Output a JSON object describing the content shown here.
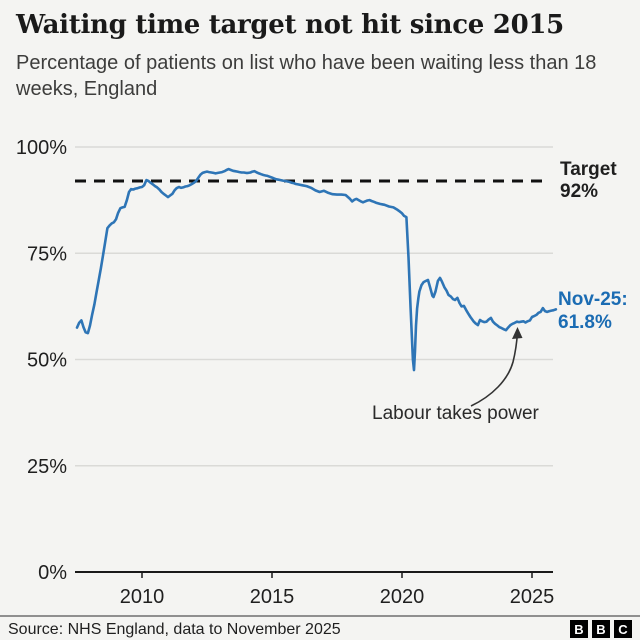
{
  "header": {
    "title": "Waiting time target not hit since 2015",
    "subtitle": "Percentage of patients on list who have been waiting less than 18 weeks, England"
  },
  "annotations": {
    "target_line1": "Target",
    "target_line2": "92%",
    "latest_line1": "Nov-25:",
    "latest_line2": "61.8%",
    "event_label": "Labour takes power"
  },
  "footer": {
    "source": "Source: NHS England, data to November 2025",
    "logo_letters": [
      "B",
      "B",
      "C"
    ]
  },
  "colors": {
    "background": "#f4f4f2",
    "series_line": "#2e75b6",
    "latest_text": "#1b6cb3",
    "target_dash": "#111111",
    "gridline": "#dadad7",
    "axis": "#1a1a1a",
    "text": "#1f1f1f"
  },
  "chart_data": {
    "type": "line",
    "title": "Waiting time target not hit since 2015",
    "ylabel": "Percentage of patients on list who have been waiting less than 18 weeks",
    "region": "England",
    "grid": "horizontal",
    "legend_position": "none",
    "xlim": [
      2007.3,
      2026.1
    ],
    "ylim": [
      0,
      100
    ],
    "x_ticks": [
      2010,
      2015,
      2020,
      2025
    ],
    "x_tick_labels": [
      "2010",
      "2015",
      "2020",
      "2025"
    ],
    "y_ticks": [
      0,
      25,
      50,
      75,
      100
    ],
    "y_tick_labels": [
      "0%",
      "25%",
      "50%",
      "75%",
      "100%"
    ],
    "target_value": 92,
    "latest_point": {
      "label": "Nov-25",
      "value": 61.8,
      "x": 2025.92
    },
    "event_point": {
      "label": "Labour takes power",
      "x": 2024.5,
      "value": 58.8
    },
    "series": [
      {
        "name": "% waiting less than 18 weeks",
        "points": [
          [
            2007.5,
            57.5
          ],
          [
            2007.58,
            58.6
          ],
          [
            2007.67,
            59.2
          ],
          [
            2007.75,
            57.6
          ],
          [
            2007.83,
            56.4
          ],
          [
            2007.92,
            56.2
          ],
          [
            2008.0,
            58.0
          ],
          [
            2008.08,
            60.5
          ],
          [
            2008.17,
            63.0
          ],
          [
            2008.25,
            65.8
          ],
          [
            2008.33,
            68.5
          ],
          [
            2008.42,
            71.5
          ],
          [
            2008.5,
            74.5
          ],
          [
            2008.58,
            77.5
          ],
          [
            2008.67,
            80.9
          ],
          [
            2008.75,
            81.5
          ],
          [
            2008.83,
            82.0
          ],
          [
            2008.92,
            82.3
          ],
          [
            2009.0,
            83.0
          ],
          [
            2009.08,
            84.5
          ],
          [
            2009.17,
            85.6
          ],
          [
            2009.25,
            85.8
          ],
          [
            2009.33,
            85.9
          ],
          [
            2009.42,
            87.5
          ],
          [
            2009.5,
            89.4
          ],
          [
            2009.58,
            90.1
          ],
          [
            2009.67,
            90.0
          ],
          [
            2009.75,
            90.2
          ],
          [
            2009.83,
            90.3
          ],
          [
            2009.92,
            90.5
          ],
          [
            2010.0,
            90.6
          ],
          [
            2010.08,
            91.0
          ],
          [
            2010.17,
            92.2
          ],
          [
            2010.25,
            92.0
          ],
          [
            2010.33,
            91.6
          ],
          [
            2010.42,
            91.2
          ],
          [
            2010.5,
            90.8
          ],
          [
            2010.58,
            90.5
          ],
          [
            2010.67,
            90.0
          ],
          [
            2010.75,
            89.4
          ],
          [
            2010.83,
            89.0
          ],
          [
            2010.92,
            88.6
          ],
          [
            2011.0,
            88.2
          ],
          [
            2011.08,
            88.6
          ],
          [
            2011.17,
            89.0
          ],
          [
            2011.25,
            89.8
          ],
          [
            2011.33,
            90.3
          ],
          [
            2011.42,
            90.6
          ],
          [
            2011.5,
            90.4
          ],
          [
            2011.58,
            90.5
          ],
          [
            2011.67,
            90.7
          ],
          [
            2011.75,
            90.8
          ],
          [
            2011.83,
            91.0
          ],
          [
            2011.92,
            91.3
          ],
          [
            2012.0,
            91.6
          ],
          [
            2012.08,
            92.0
          ],
          [
            2012.17,
            92.8
          ],
          [
            2012.25,
            93.5
          ],
          [
            2012.33,
            93.9
          ],
          [
            2012.42,
            94.1
          ],
          [
            2012.5,
            94.2
          ],
          [
            2012.58,
            94.1
          ],
          [
            2012.67,
            94.0
          ],
          [
            2012.75,
            93.9
          ],
          [
            2012.83,
            93.8
          ],
          [
            2012.92,
            93.9
          ],
          [
            2013.0,
            94.0
          ],
          [
            2013.08,
            94.1
          ],
          [
            2013.17,
            94.3
          ],
          [
            2013.25,
            94.6
          ],
          [
            2013.33,
            94.8
          ],
          [
            2013.42,
            94.6
          ],
          [
            2013.5,
            94.4
          ],
          [
            2013.58,
            94.3
          ],
          [
            2013.67,
            94.2
          ],
          [
            2013.75,
            94.1
          ],
          [
            2013.83,
            94.0
          ],
          [
            2013.92,
            94.0
          ],
          [
            2014.0,
            93.9
          ],
          [
            2014.08,
            93.9
          ],
          [
            2014.17,
            94.0
          ],
          [
            2014.25,
            94.2
          ],
          [
            2014.33,
            94.3
          ],
          [
            2014.42,
            94.0
          ],
          [
            2014.5,
            93.8
          ],
          [
            2014.58,
            93.6
          ],
          [
            2014.67,
            93.4
          ],
          [
            2014.75,
            93.3
          ],
          [
            2014.83,
            93.2
          ],
          [
            2014.92,
            93.0
          ],
          [
            2015.0,
            92.8
          ],
          [
            2015.08,
            92.6
          ],
          [
            2015.17,
            92.4
          ],
          [
            2015.25,
            92.3
          ],
          [
            2015.33,
            92.2
          ],
          [
            2015.42,
            92.1
          ],
          [
            2015.5,
            92.0
          ],
          [
            2015.58,
            91.9
          ],
          [
            2015.67,
            91.8
          ],
          [
            2015.75,
            91.6
          ],
          [
            2015.83,
            91.5
          ],
          [
            2015.92,
            91.3
          ],
          [
            2016.0,
            91.2
          ],
          [
            2016.17,
            91.0
          ],
          [
            2016.33,
            90.8
          ],
          [
            2016.5,
            90.4
          ],
          [
            2016.67,
            89.8
          ],
          [
            2016.83,
            89.4
          ],
          [
            2017.0,
            89.7
          ],
          [
            2017.17,
            89.2
          ],
          [
            2017.33,
            88.9
          ],
          [
            2017.5,
            88.8
          ],
          [
            2017.67,
            88.8
          ],
          [
            2017.83,
            88.7
          ],
          [
            2018.0,
            87.8
          ],
          [
            2018.08,
            87.2
          ],
          [
            2018.17,
            87.6
          ],
          [
            2018.25,
            87.8
          ],
          [
            2018.33,
            87.5
          ],
          [
            2018.42,
            87.2
          ],
          [
            2018.5,
            87.0
          ],
          [
            2018.58,
            87.2
          ],
          [
            2018.67,
            87.4
          ],
          [
            2018.75,
            87.5
          ],
          [
            2018.83,
            87.3
          ],
          [
            2018.92,
            87.1
          ],
          [
            2019.0,
            86.9
          ],
          [
            2019.17,
            86.6
          ],
          [
            2019.33,
            86.4
          ],
          [
            2019.5,
            86.0
          ],
          [
            2019.67,
            85.8
          ],
          [
            2019.83,
            85.2
          ],
          [
            2019.92,
            84.8
          ],
          [
            2020.0,
            84.4
          ],
          [
            2020.08,
            83.8
          ],
          [
            2020.17,
            83.5
          ],
          [
            2020.25,
            74.0
          ],
          [
            2020.33,
            62.0
          ],
          [
            2020.42,
            50.0
          ],
          [
            2020.46,
            47.5
          ],
          [
            2020.5,
            52.0
          ],
          [
            2020.54,
            58.0
          ],
          [
            2020.58,
            62.0
          ],
          [
            2020.63,
            64.5
          ],
          [
            2020.67,
            66.0
          ],
          [
            2020.75,
            67.5
          ],
          [
            2020.83,
            68.2
          ],
          [
            2020.92,
            68.5
          ],
          [
            2021.0,
            68.7
          ],
          [
            2021.08,
            67.0
          ],
          [
            2021.17,
            65.0
          ],
          [
            2021.21,
            64.7
          ],
          [
            2021.29,
            66.0
          ],
          [
            2021.38,
            68.5
          ],
          [
            2021.46,
            69.2
          ],
          [
            2021.54,
            68.3
          ],
          [
            2021.63,
            67.0
          ],
          [
            2021.71,
            66.2
          ],
          [
            2021.79,
            65.2
          ],
          [
            2021.88,
            64.8
          ],
          [
            2021.96,
            64.2
          ],
          [
            2022.04,
            64.0
          ],
          [
            2022.13,
            64.5
          ],
          [
            2022.21,
            63.3
          ],
          [
            2022.29,
            62.5
          ],
          [
            2022.38,
            62.6
          ],
          [
            2022.46,
            61.7
          ],
          [
            2022.54,
            60.9
          ],
          [
            2022.63,
            60.0
          ],
          [
            2022.75,
            59.0
          ],
          [
            2022.83,
            58.5
          ],
          [
            2022.92,
            58.1
          ],
          [
            2023.0,
            59.3
          ],
          [
            2023.08,
            59.0
          ],
          [
            2023.17,
            58.8
          ],
          [
            2023.25,
            58.9
          ],
          [
            2023.33,
            59.4
          ],
          [
            2023.42,
            59.8
          ],
          [
            2023.5,
            58.9
          ],
          [
            2023.58,
            58.4
          ],
          [
            2023.67,
            58.0
          ],
          [
            2023.75,
            57.6
          ],
          [
            2023.83,
            57.4
          ],
          [
            2023.92,
            57.1
          ],
          [
            2024.0,
            56.9
          ],
          [
            2024.08,
            57.5
          ],
          [
            2024.17,
            58.1
          ],
          [
            2024.25,
            58.4
          ],
          [
            2024.33,
            58.6
          ],
          [
            2024.42,
            58.9
          ],
          [
            2024.5,
            58.8
          ],
          [
            2024.58,
            58.9
          ],
          [
            2024.67,
            59.0
          ],
          [
            2024.75,
            58.7
          ],
          [
            2024.83,
            59.0
          ],
          [
            2024.92,
            59.2
          ],
          [
            2025.0,
            60.0
          ],
          [
            2025.08,
            60.2
          ],
          [
            2025.17,
            60.5
          ],
          [
            2025.25,
            61.0
          ],
          [
            2025.33,
            61.2
          ],
          [
            2025.42,
            62.1
          ],
          [
            2025.5,
            61.4
          ],
          [
            2025.58,
            61.2
          ],
          [
            2025.67,
            61.4
          ],
          [
            2025.75,
            61.5
          ],
          [
            2025.83,
            61.6
          ],
          [
            2025.92,
            61.8
          ]
        ]
      }
    ]
  }
}
